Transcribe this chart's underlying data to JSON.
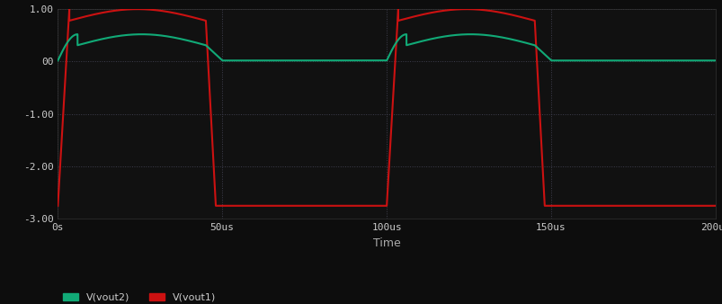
{
  "background_color": "#0d0d0d",
  "plot_bg_color": "#111111",
  "grid_color": "#2a2a3a",
  "xlabel": "Time",
  "ylabel": "",
  "xlim": [
    0,
    0.0002
  ],
  "ylim": [
    -3.0,
    1.0
  ],
  "ytick_labels": [
    "1.00",
    "00",
    "-1.00",
    "-2.00",
    "-3.00"
  ],
  "ytick_values": [
    1.0,
    0.0,
    -1.0,
    -2.0,
    -3.0
  ],
  "xtick_labels": [
    "0s",
    "50us",
    "100us",
    "150us",
    "200us"
  ],
  "xtick_values": [
    0,
    5e-05,
    0.0001,
    0.00015,
    0.0002
  ],
  "legend": [
    "V(vout2)",
    "V(vout1)"
  ],
  "vout1_color": "#cc1111",
  "vout2_color": "#11aa77",
  "period": 0.0001,
  "high_time": 4.5e-05,
  "vout1_high_peak": 1.0,
  "vout1_low": -2.75,
  "vout1_rise_time": 3.5e-06,
  "vout1_fall_time": 3e-06,
  "vout2_peak": 0.52,
  "vout2_low": 0.02,
  "vout2_rise_time": 6e-06,
  "vout2_fall_time": 5e-06,
  "tick_fontsize": 8,
  "legend_fontsize": 8,
  "linewidth": 1.5
}
